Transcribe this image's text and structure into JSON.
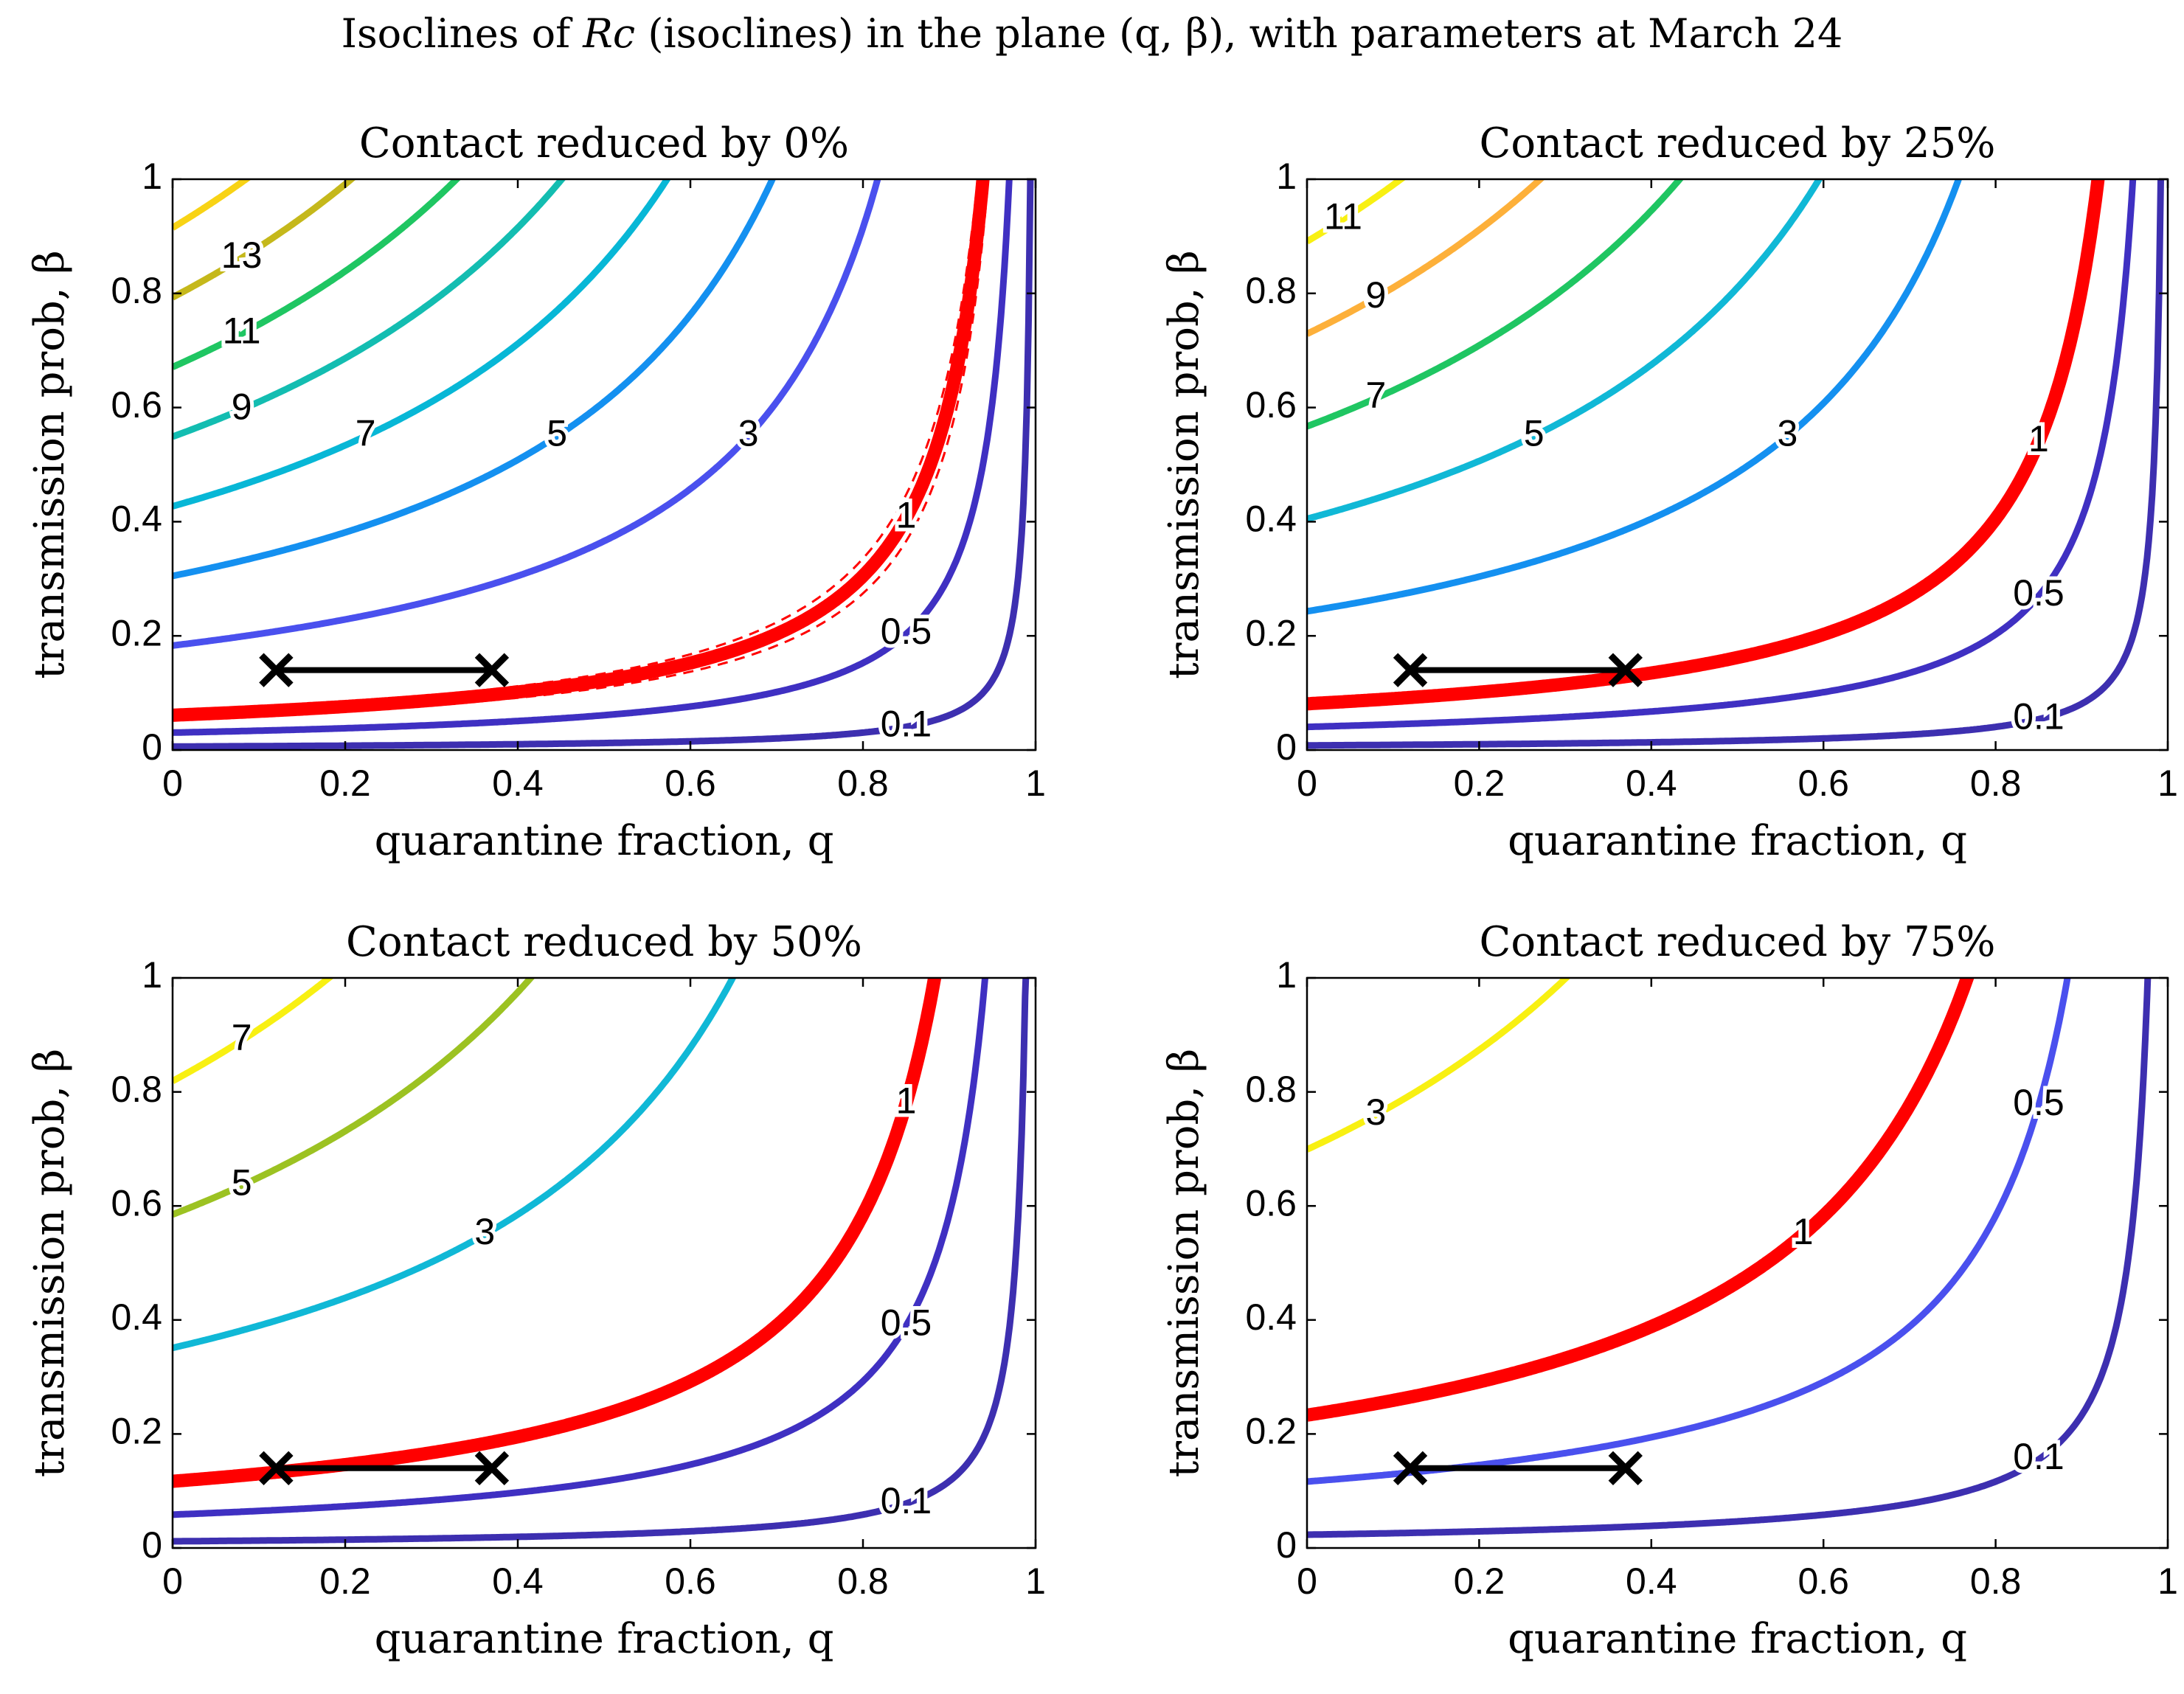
{
  "figure": {
    "title_prefix": "Isoclines of ",
    "title_symbol": "Rc",
    "title_suffix": " (isoclines) in the plane (q, β), with parameters at March 24"
  },
  "chart_data": [
    {
      "type": "line",
      "subtype": "contour",
      "title": "Contact reduced by 0%",
      "xlabel": "quarantine fraction, q",
      "ylabel": "transmission prob, β",
      "xlim": [
        0,
        1
      ],
      "ylim": [
        0,
        1
      ],
      "xticks": [
        "0",
        "0.2",
        "0.4",
        "0.6",
        "0.8",
        "1"
      ],
      "yticks": [
        "0",
        "0.2",
        "0.4",
        "0.6",
        "0.8",
        "1"
      ],
      "critical_level": 1,
      "k": 0.061,
      "levels": [
        {
          "label": "0.1",
          "value": 0.1,
          "color": "#3d2fb0"
        },
        {
          "label": "0.5",
          "value": 0.5,
          "color": "#3f30c2"
        },
        {
          "label": "1",
          "value": 1,
          "color": "#ff0000"
        },
        {
          "label": "3",
          "value": 3,
          "color": "#4a50ee"
        },
        {
          "label": "5",
          "value": 5,
          "color": "#1490f0"
        },
        {
          "label": "7",
          "value": 7,
          "color": "#07b7d6"
        },
        {
          "label": "9",
          "value": 9,
          "color": "#13bdb1"
        },
        {
          "label": "11",
          "value": 11,
          "color": "#1fc662"
        },
        {
          "label": "13",
          "value": 13,
          "color": "#c5b81b"
        },
        {
          "label": "",
          "value": 15,
          "color": "#f8d315"
        }
      ],
      "segment": {
        "q_start": 0.12,
        "q_end": 0.37,
        "beta": 0.14
      }
    },
    {
      "type": "line",
      "subtype": "contour",
      "title": "Contact reduced by 25%",
      "xlabel": "quarantine fraction, q",
      "ylabel": "transmission prob, β",
      "xlim": [
        0,
        1
      ],
      "ylim": [
        0,
        1
      ],
      "xticks": [
        "0",
        "0.2",
        "0.4",
        "0.6",
        "0.8",
        "1"
      ],
      "yticks": [
        "0",
        "0.2",
        "0.4",
        "0.6",
        "0.8",
        "1"
      ],
      "critical_level": 1,
      "k": 0.081,
      "levels": [
        {
          "label": "0.1",
          "value": 0.1,
          "color": "#3d2fb0"
        },
        {
          "label": "0.5",
          "value": 0.5,
          "color": "#3f30c2"
        },
        {
          "label": "1",
          "value": 1,
          "color": "#ff0000"
        },
        {
          "label": "3",
          "value": 3,
          "color": "#1490f0"
        },
        {
          "label": "5",
          "value": 5,
          "color": "#10b8d6"
        },
        {
          "label": "7",
          "value": 7,
          "color": "#1fc662"
        },
        {
          "label": "9",
          "value": 9,
          "color": "#fdb03a"
        },
        {
          "label": "11",
          "value": 11,
          "color": "#f8f012"
        }
      ],
      "segment": {
        "q_start": 0.12,
        "q_end": 0.37,
        "beta": 0.14
      }
    },
    {
      "type": "line",
      "subtype": "contour",
      "title": "Contact reduced by 50%",
      "xlabel": "quarantine fraction, q",
      "ylabel": "transmission prob, β",
      "xlim": [
        0,
        1
      ],
      "ylim": [
        0,
        1
      ],
      "xticks": [
        "0",
        "0.2",
        "0.4",
        "0.6",
        "0.8",
        "1"
      ],
      "yticks": [
        "0",
        "0.2",
        "0.4",
        "0.6",
        "0.8",
        "1"
      ],
      "critical_level": 1,
      "k": 0.117,
      "levels": [
        {
          "label": "0.1",
          "value": 0.1,
          "color": "#3d2fb0"
        },
        {
          "label": "0.5",
          "value": 0.5,
          "color": "#3f30c2"
        },
        {
          "label": "1",
          "value": 1,
          "color": "#ff0000"
        },
        {
          "label": "3",
          "value": 3,
          "color": "#10b8d6"
        },
        {
          "label": "5",
          "value": 5,
          "color": "#9cc222"
        },
        {
          "label": "7",
          "value": 7,
          "color": "#f8f012"
        }
      ],
      "segment": {
        "q_start": 0.12,
        "q_end": 0.37,
        "beta": 0.14
      }
    },
    {
      "type": "line",
      "subtype": "contour",
      "title": "Contact reduced by 75%",
      "xlabel": "quarantine fraction, q",
      "ylabel": "transmission prob, β",
      "xlim": [
        0,
        1
      ],
      "ylim": [
        0,
        1
      ],
      "xticks": [
        "0",
        "0.2",
        "0.4",
        "0.6",
        "0.8",
        "1"
      ],
      "yticks": [
        "0",
        "0.2",
        "0.4",
        "0.6",
        "0.8",
        "1"
      ],
      "critical_level": 1,
      "k": 0.233,
      "levels": [
        {
          "label": "0.1",
          "value": 0.1,
          "color": "#3d2fb0"
        },
        {
          "label": "0.5",
          "value": 0.5,
          "color": "#4a50ee"
        },
        {
          "label": "1",
          "value": 1,
          "color": "#ff0000"
        },
        {
          "label": "3",
          "value": 3,
          "color": "#f8f012"
        }
      ],
      "segment": {
        "q_start": 0.12,
        "q_end": 0.37,
        "beta": 0.14
      }
    }
  ]
}
